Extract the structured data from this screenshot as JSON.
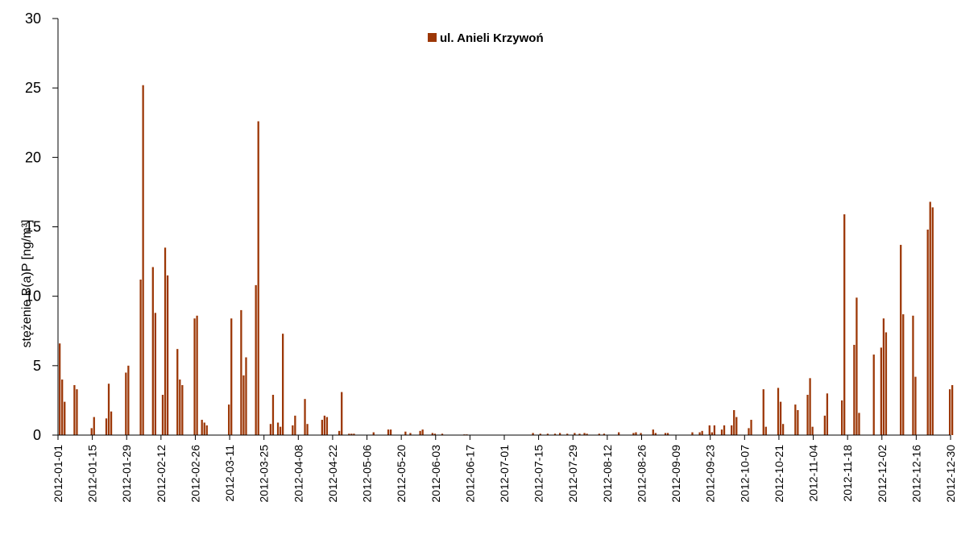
{
  "chart_data": {
    "type": "bar",
    "title": "",
    "xlabel": "",
    "ylabel": "stężenie B(a)P [ng/m³]",
    "ylim": [
      0,
      30
    ],
    "yticks": [
      0,
      5,
      10,
      15,
      20,
      25,
      30
    ],
    "xlim": [
      "2012-01-01",
      "2012-12-30"
    ],
    "xticks": [
      "2012-01-01",
      "2012-01-15",
      "2012-01-29",
      "2012-02-12",
      "2012-02-26",
      "2012-03-11",
      "2012-03-25",
      "2012-04-08",
      "2012-04-22",
      "2012-05-06",
      "2012-05-20",
      "2012-06-03",
      "2012-06-17",
      "2012-07-01",
      "2012-07-15",
      "2012-07-29",
      "2012-08-12",
      "2012-08-26",
      "2012-09-09",
      "2012-09-23",
      "2012-10-07",
      "2012-10-21",
      "2012-11-04",
      "2012-11-18",
      "2012-12-02",
      "2012-12-16",
      "2012-12-30"
    ],
    "legend_position": "top-center",
    "grid": false,
    "series": [
      {
        "name": "ul. Anieli Krzywoń",
        "color": "#9C3706",
        "points": [
          [
            "2012-01-01",
            6.6
          ],
          [
            "2012-01-02",
            4.0
          ],
          [
            "2012-01-03",
            2.4
          ],
          [
            "2012-01-07",
            3.6
          ],
          [
            "2012-01-08",
            3.3
          ],
          [
            "2012-01-14",
            0.5
          ],
          [
            "2012-01-15",
            1.3
          ],
          [
            "2012-01-20",
            1.2
          ],
          [
            "2012-01-21",
            3.7
          ],
          [
            "2012-01-22",
            1.7
          ],
          [
            "2012-01-28",
            4.5
          ],
          [
            "2012-01-29",
            5.0
          ],
          [
            "2012-02-03",
            11.2
          ],
          [
            "2012-02-04",
            25.2
          ],
          [
            "2012-02-08",
            12.1
          ],
          [
            "2012-02-09",
            8.8
          ],
          [
            "2012-02-12",
            2.9
          ],
          [
            "2012-02-13",
            13.5
          ],
          [
            "2012-02-14",
            11.5
          ],
          [
            "2012-02-18",
            6.2
          ],
          [
            "2012-02-19",
            4.0
          ],
          [
            "2012-02-20",
            3.6
          ],
          [
            "2012-02-25",
            8.4
          ],
          [
            "2012-02-26",
            8.6
          ],
          [
            "2012-02-28",
            1.1
          ],
          [
            "2012-02-29",
            0.9
          ],
          [
            "2012-03-01",
            0.7
          ],
          [
            "2012-03-10",
            2.2
          ],
          [
            "2012-03-11",
            8.4
          ],
          [
            "2012-03-15",
            9.0
          ],
          [
            "2012-03-16",
            4.3
          ],
          [
            "2012-03-17",
            5.6
          ],
          [
            "2012-03-21",
            10.8
          ],
          [
            "2012-03-22",
            22.6
          ],
          [
            "2012-03-27",
            0.8
          ],
          [
            "2012-03-28",
            2.9
          ],
          [
            "2012-03-30",
            0.9
          ],
          [
            "2012-03-31",
            0.6
          ],
          [
            "2012-04-01",
            7.3
          ],
          [
            "2012-04-05",
            0.7
          ],
          [
            "2012-04-06",
            1.4
          ],
          [
            "2012-04-10",
            2.6
          ],
          [
            "2012-04-11",
            0.8
          ],
          [
            "2012-04-17",
            1.1
          ],
          [
            "2012-04-18",
            1.4
          ],
          [
            "2012-04-19",
            1.3
          ],
          [
            "2012-04-24",
            0.3
          ],
          [
            "2012-04-25",
            3.1
          ],
          [
            "2012-04-28",
            0.1
          ],
          [
            "2012-04-29",
            0.1
          ],
          [
            "2012-04-30",
            0.1
          ],
          [
            "2012-05-08",
            0.2
          ],
          [
            "2012-05-14",
            0.4
          ],
          [
            "2012-05-15",
            0.4
          ],
          [
            "2012-05-21",
            0.25
          ],
          [
            "2012-05-23",
            0.15
          ],
          [
            "2012-05-27",
            0.3
          ],
          [
            "2012-05-28",
            0.4
          ],
          [
            "2012-06-01",
            0.15
          ],
          [
            "2012-06-02",
            0.1
          ],
          [
            "2012-06-05",
            0.1
          ],
          [
            "2012-06-14",
            0.05
          ],
          [
            "2012-06-15",
            0.05
          ],
          [
            "2012-07-12",
            0.15
          ],
          [
            "2012-07-15",
            0.1
          ],
          [
            "2012-07-18",
            0.1
          ],
          [
            "2012-07-21",
            0.1
          ],
          [
            "2012-07-23",
            0.15
          ],
          [
            "2012-07-26",
            0.1
          ],
          [
            "2012-07-29",
            0.15
          ],
          [
            "2012-07-31",
            0.1
          ],
          [
            "2012-08-02",
            0.15
          ],
          [
            "2012-08-03",
            0.1
          ],
          [
            "2012-08-08",
            0.1
          ],
          [
            "2012-08-10",
            0.1
          ],
          [
            "2012-08-16",
            0.2
          ],
          [
            "2012-08-22",
            0.15
          ],
          [
            "2012-08-23",
            0.2
          ],
          [
            "2012-08-25",
            0.15
          ],
          [
            "2012-08-30",
            0.4
          ],
          [
            "2012-08-31",
            0.15
          ],
          [
            "2012-09-04",
            0.15
          ],
          [
            "2012-09-05",
            0.15
          ],
          [
            "2012-09-15",
            0.2
          ],
          [
            "2012-09-18",
            0.2
          ],
          [
            "2012-09-19",
            0.3
          ],
          [
            "2012-09-22",
            0.7
          ],
          [
            "2012-09-23",
            0.2
          ],
          [
            "2012-09-24",
            0.7
          ],
          [
            "2012-09-27",
            0.4
          ],
          [
            "2012-09-28",
            0.7
          ],
          [
            "2012-10-01",
            0.7
          ],
          [
            "2012-10-02",
            1.8
          ],
          [
            "2012-10-03",
            1.3
          ],
          [
            "2012-10-08",
            0.5
          ],
          [
            "2012-10-09",
            1.1
          ],
          [
            "2012-10-14",
            3.3
          ],
          [
            "2012-10-15",
            0.6
          ],
          [
            "2012-10-20",
            3.4
          ],
          [
            "2012-10-21",
            2.4
          ],
          [
            "2012-10-22",
            0.8
          ],
          [
            "2012-10-27",
            2.2
          ],
          [
            "2012-10-28",
            1.8
          ],
          [
            "2012-11-01",
            2.9
          ],
          [
            "2012-11-02",
            4.1
          ],
          [
            "2012-11-03",
            0.6
          ],
          [
            "2012-11-08",
            1.4
          ],
          [
            "2012-11-09",
            3.0
          ],
          [
            "2012-11-15",
            2.5
          ],
          [
            "2012-11-16",
            15.9
          ],
          [
            "2012-11-20",
            6.5
          ],
          [
            "2012-11-21",
            9.9
          ],
          [
            "2012-11-22",
            1.6
          ],
          [
            "2012-11-28",
            5.8
          ],
          [
            "2012-12-01",
            6.3
          ],
          [
            "2012-12-02",
            8.4
          ],
          [
            "2012-12-03",
            7.4
          ],
          [
            "2012-12-09",
            13.7
          ],
          [
            "2012-12-10",
            8.7
          ],
          [
            "2012-12-14",
            8.6
          ],
          [
            "2012-12-15",
            4.2
          ],
          [
            "2012-12-20",
            14.8
          ],
          [
            "2012-12-21",
            16.8
          ],
          [
            "2012-12-22",
            16.4
          ],
          [
            "2012-12-29",
            3.3
          ],
          [
            "2012-12-30",
            3.6
          ]
        ]
      }
    ]
  }
}
